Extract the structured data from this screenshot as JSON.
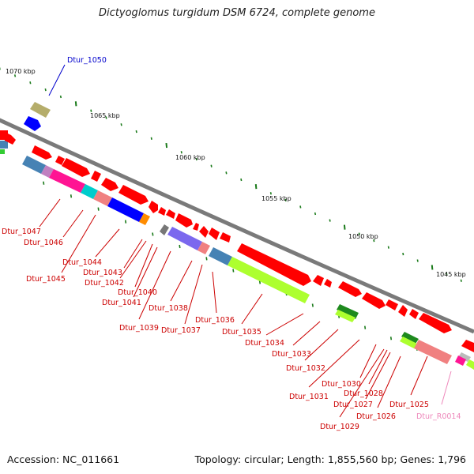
{
  "title": "Dictyoglomus turgidum DSM 6724, complete genome",
  "footer": {
    "accession": "Accession: NC_011661",
    "topology": "Topology: circular; Length: 1,855,560 bp; Genes: 1,796"
  },
  "colors": {
    "backbone": "#777777",
    "tick": "#1a7a1a",
    "gene_red": "#ff0000",
    "label_red": "#cc0000",
    "label_blue": "#0000cc",
    "label_pink": "#ee88bb"
  },
  "scale_labels": [
    "1070 kbp",
    "1065 kbp",
    "1060 kbp",
    "1055 kbp",
    "1050 kbp",
    "1045 kbp"
  ],
  "gene_labels": [
    {
      "name": "Dtur_1050",
      "color": "blue"
    },
    {
      "name": "Dtur_1047",
      "color": "red"
    },
    {
      "name": "Dtur_1046",
      "color": "red"
    },
    {
      "name": "Dtur_1045",
      "color": "red"
    },
    {
      "name": "Dtur_1044",
      "color": "red"
    },
    {
      "name": "Dtur_1043",
      "color": "red"
    },
    {
      "name": "Dtur_1042",
      "color": "red"
    },
    {
      "name": "Dtur_1041",
      "color": "red"
    },
    {
      "name": "Dtur_1040",
      "color": "red"
    },
    {
      "name": "Dtur_1039",
      "color": "red"
    },
    {
      "name": "Dtur_1038",
      "color": "red"
    },
    {
      "name": "Dtur_1037",
      "color": "red"
    },
    {
      "name": "Dtur_1036",
      "color": "red"
    },
    {
      "name": "Dtur_1035",
      "color": "red"
    },
    {
      "name": "Dtur_1034",
      "color": "red"
    },
    {
      "name": "Dtur_1033",
      "color": "red"
    },
    {
      "name": "Dtur_1032",
      "color": "red"
    },
    {
      "name": "Dtur_1031",
      "color": "red"
    },
    {
      "name": "Dtur_1030",
      "color": "red"
    },
    {
      "name": "Dtur_1029",
      "color": "red"
    },
    {
      "name": "Dtur_1028",
      "color": "red"
    },
    {
      "name": "Dtur_1027",
      "color": "red"
    },
    {
      "name": "Dtur_1026",
      "color": "red"
    },
    {
      "name": "Dtur_1025",
      "color": "red"
    },
    {
      "name": "Dtur_R0014",
      "color": "pink"
    }
  ]
}
